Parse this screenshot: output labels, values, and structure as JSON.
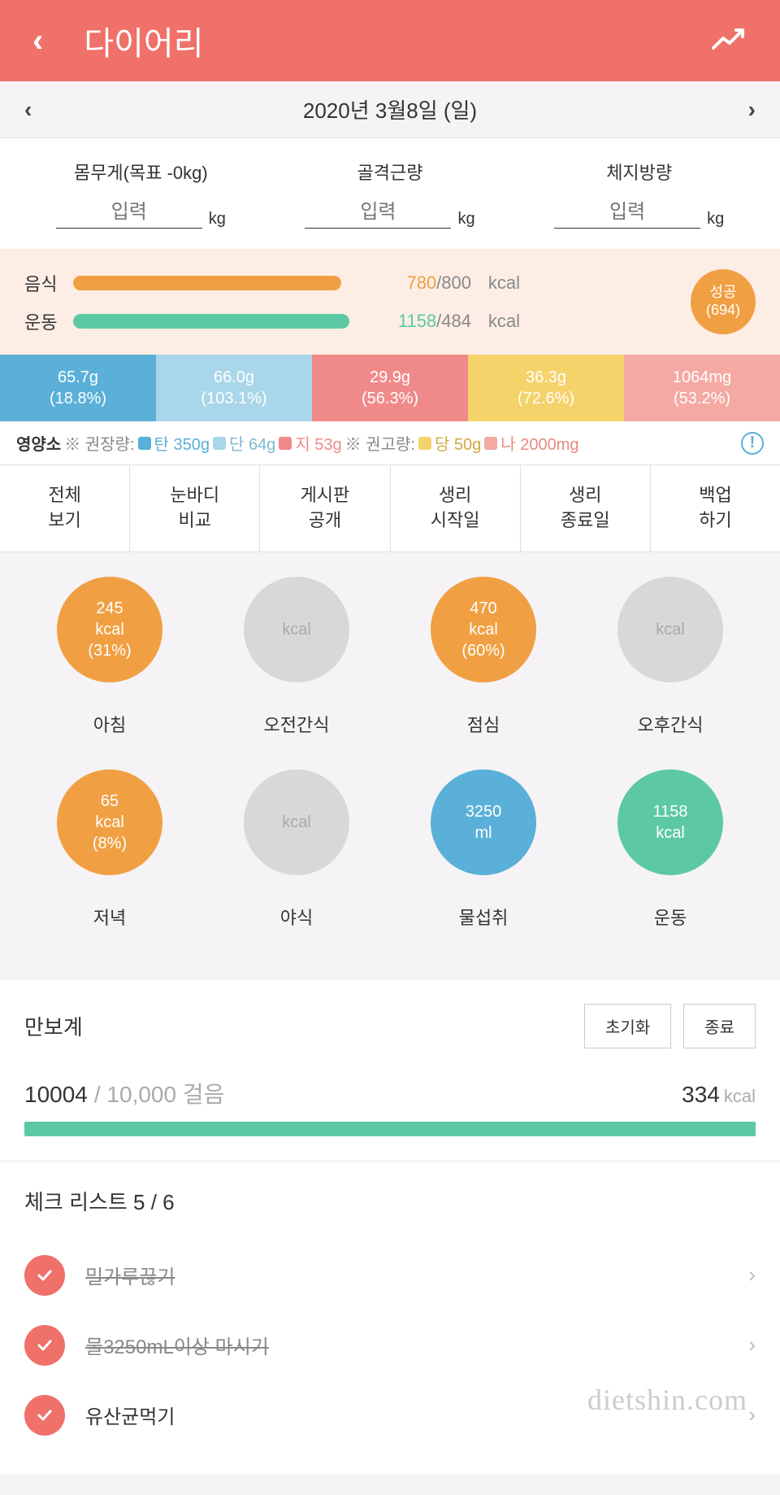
{
  "header": {
    "title": "다이어리"
  },
  "date_nav": {
    "date": "2020년 3월8일 (일)"
  },
  "body_stats": {
    "weight": {
      "label": "몸무게(목표 -0kg)",
      "placeholder": "입력",
      "unit": "kg"
    },
    "muscle": {
      "label": "골격근량",
      "placeholder": "입력",
      "unit": "kg"
    },
    "fat": {
      "label": "체지방량",
      "placeholder": "입력",
      "unit": "kg"
    }
  },
  "cal_summary": {
    "food": {
      "label": "음식",
      "current": "780",
      "total": "/800",
      "unit": "kcal",
      "bar_color": "#f0a043",
      "bar_pct": 97
    },
    "exercise": {
      "label": "운동",
      "current": "1158",
      "total": "/484",
      "unit": "kcal",
      "bar_color": "#5cc9a3",
      "bar_pct": 100
    },
    "food_current_color": "#f0a043",
    "exercise_current_color": "#5cc9a3",
    "badge": {
      "line1": "성공",
      "line2": "(694)",
      "bg": "#f0a043"
    }
  },
  "nutrients": [
    {
      "value": "65.7g",
      "pct": "(18.8%)",
      "bg": "#5ab0d8"
    },
    {
      "value": "66.0g",
      "pct": "(103.1%)",
      "bg": "#a9d6e8"
    },
    {
      "value": "29.9g",
      "pct": "(56.3%)",
      "bg": "#f08a8a"
    },
    {
      "value": "36.3g",
      "pct": "(72.6%)",
      "bg": "#f5d36b"
    },
    {
      "value": "1064mg",
      "pct": "(53.2%)",
      "bg": "#f5a9a3"
    }
  ],
  "nutrient_legend": {
    "title": "영양소",
    "rec_label": "※ 권장량:",
    "limit_label": "※ 권고량:",
    "items": [
      {
        "swatch": "#5ab0d8",
        "text": "탄 350g",
        "color": "#5ab0d8"
      },
      {
        "swatch": "#a9d6e8",
        "text": "단 64g",
        "color": "#7bb8d0"
      },
      {
        "swatch": "#f08a8a",
        "text": "지 53g",
        "color": "#f08a8a"
      }
    ],
    "limit_items": [
      {
        "swatch": "#f5d36b",
        "text": "당 50g",
        "color": "#d4a840"
      },
      {
        "swatch": "#f5a9a3",
        "text": "나 2000mg",
        "color": "#e88a80"
      }
    ]
  },
  "action_tabs": [
    "전체\n보기",
    "눈바디\n비교",
    "게시판\n공개",
    "생리\n시작일",
    "생리\n종료일",
    "백업\n하기"
  ],
  "meals": [
    {
      "name": "아침",
      "lines": [
        "245",
        "kcal",
        "(31%)"
      ],
      "bg": "#f0a043",
      "empty": false
    },
    {
      "name": "오전간식",
      "lines": [
        "kcal"
      ],
      "bg": "#d8d8d8",
      "empty": true
    },
    {
      "name": "점심",
      "lines": [
        "470",
        "kcal",
        "(60%)"
      ],
      "bg": "#f0a043",
      "empty": false
    },
    {
      "name": "오후간식",
      "lines": [
        "kcal"
      ],
      "bg": "#d8d8d8",
      "empty": true
    },
    {
      "name": "저녁",
      "lines": [
        "65",
        "kcal",
        "(8%)"
      ],
      "bg": "#f0a043",
      "empty": false
    },
    {
      "name": "야식",
      "lines": [
        "kcal"
      ],
      "bg": "#d8d8d8",
      "empty": true
    },
    {
      "name": "물섭취",
      "lines": [
        "3250",
        "ml"
      ],
      "bg": "#5ab0d8",
      "empty": false
    },
    {
      "name": "운동",
      "lines": [
        "1158",
        "kcal"
      ],
      "bg": "#5cc9a3",
      "empty": false
    }
  ],
  "pedometer": {
    "title": "만보계",
    "reset": "초기화",
    "end": "종료",
    "current": "10004",
    "goal": "/ 10,000 걸음",
    "kcal": "334",
    "kcal_unit": "kcal",
    "bar_color": "#5cc9a3",
    "bar_pct": 100
  },
  "checklist": {
    "title": "체크 리스트   5 / 6",
    "items": [
      {
        "text": "밀가루끊기",
        "done": true
      },
      {
        "text": "물3250mL이상 마시기",
        "done": true
      },
      {
        "text": "유산균먹기",
        "done": false
      }
    ]
  },
  "watermark": "dietshin.com"
}
